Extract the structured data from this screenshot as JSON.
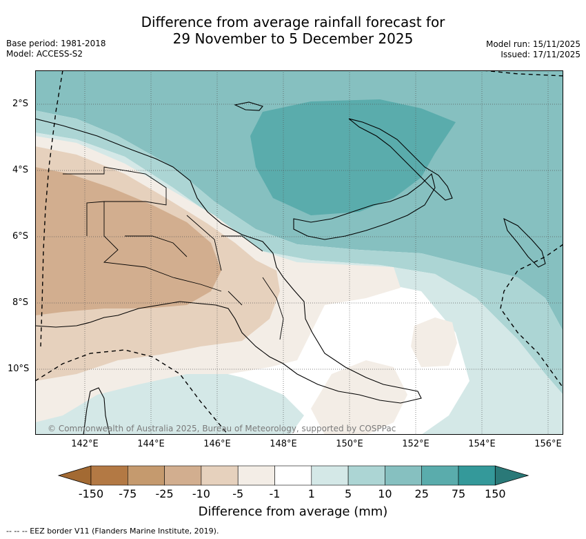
{
  "title": {
    "line1": "Difference from average rainfall forecast for",
    "line2": "29 November to 5 December 2025"
  },
  "meta_left": {
    "base_period": "Base period: 1981-2018",
    "model": "Model: ACCESS-S2"
  },
  "meta_right": {
    "model_run": "Model run: 15/11/2025",
    "issued": "Issued: 17/11/2025"
  },
  "map": {
    "lat_labels": [
      "2°S",
      "4°S",
      "6°S",
      "8°S",
      "10°S"
    ],
    "lon_labels": [
      "142°E",
      "144°E",
      "146°E",
      "148°E",
      "150°E",
      "152°E",
      "154°E",
      "156°E"
    ],
    "credit": "© Commonwealth of Australia 2025, Bureau of Meteorology, supported by COSPPac",
    "colors": {
      "brown_3": "#d2ae8f",
      "brown_2": "#e6d1bd",
      "brown_1": "#f3ede6",
      "teal_1": "#d4e8e7",
      "teal_2": "#acd5d4",
      "teal_3": "#86c0c0",
      "teal_4": "#5aacac"
    }
  },
  "colorbar": {
    "title": "Difference from average (mm)",
    "labels": [
      "-150",
      "-75",
      "-25",
      "-10",
      "-5",
      "-1",
      "1",
      "5",
      "10",
      "25",
      "75",
      "150"
    ],
    "colors": [
      "#a36a33",
      "#b37944",
      "#c59a6e",
      "#d2ae8f",
      "#e6d1bd",
      "#f3ede6",
      "#ffffff",
      "#d4e8e7",
      "#acd5d4",
      "#86c0c0",
      "#5aacac",
      "#34999a",
      "#2a7978"
    ]
  },
  "footnote": "--  --  -- EEZ border V11 (Flanders Marine Institute, 2019)."
}
